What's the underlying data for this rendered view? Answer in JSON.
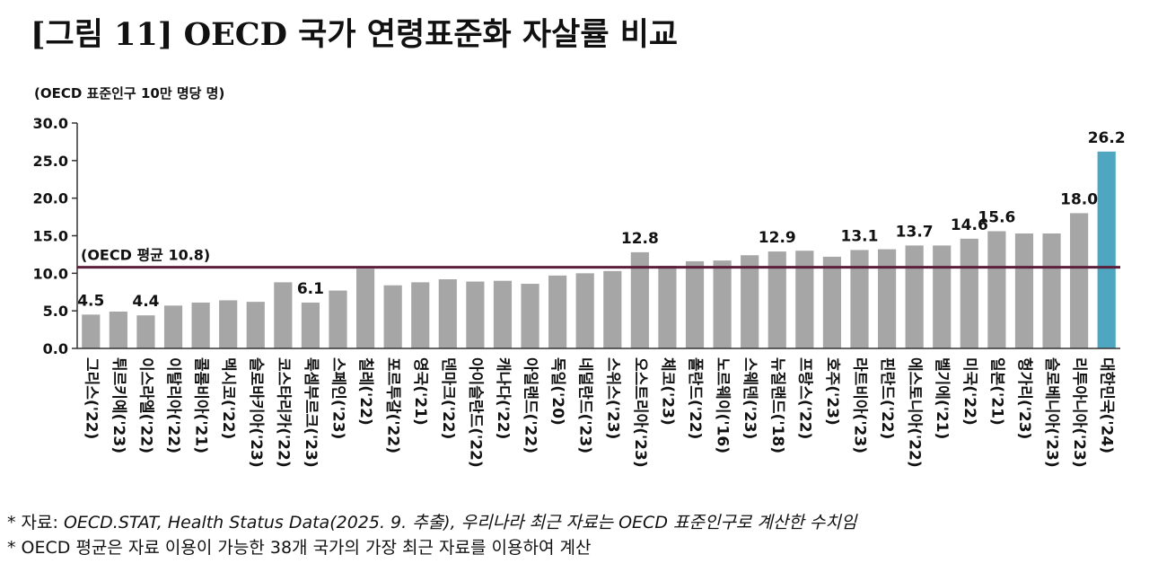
{
  "title": "[그림 11] OECD 국가 연령표준화 자살률 비교",
  "unit_label": "(OECD 표준인구 10만 명당 명)",
  "avg_label": "(OECD 평균 10.8)",
  "notes": {
    "bullet": "*",
    "source_prefix": "자료: ",
    "source_text": "OECD.STAT, Health Status Data(2025. 9. 추출), 우리나라 최근 자료는 OECD 표준인구로 계산한 수치임",
    "average_note": "OECD 평균은 자료 이용이 가능한 38개 국가의 가장 최근 자료를 이용하여 계산"
  },
  "colors": {
    "bar": "#a6a6a6",
    "highlight": "#4ea6c0",
    "avg_line": "#5b1f3c",
    "axis": "#333333"
  },
  "chart_data": {
    "type": "bar",
    "ylabel": "(OECD 표준인구 10만 명당 명)",
    "ylim": [
      0,
      30
    ],
    "yticks": [
      "0.0",
      "5.0",
      "10.0",
      "15.0",
      "20.0",
      "25.0",
      "30.0"
    ],
    "average": 10.8,
    "highlight_index": 37,
    "categories": [
      "그리스('22)",
      "튀르키예('23)",
      "이스라엘('22)",
      "이탈리아('22)",
      "콜롬비아('21)",
      "멕시코('22)",
      "슬로바키아('23)",
      "코스타리카('22)",
      "룩셈부르크('23)",
      "스페인('23)",
      "칠레('22)",
      "포르투갈('22)",
      "영국('21)",
      "덴마크('22)",
      "아이슬란드('22)",
      "캐나다('22)",
      "아일랜드('22)",
      "독일('20)",
      "네덜란드('23)",
      "스위스('23)",
      "오스트리아('23)",
      "체코('23)",
      "폴란드('22)",
      "노르웨이('16)",
      "스웨덴('23)",
      "뉴질랜드('18)",
      "프랑스('22)",
      "호주('23)",
      "라트비아('23)",
      "핀란드('22)",
      "에스토니아('22)",
      "벨기에('21)",
      "미국('22)",
      "일본('21)",
      "헝가리('23)",
      "슬로베니아('23)",
      "리투아니아('23)",
      "대한민국('24)"
    ],
    "values": [
      4.5,
      4.9,
      4.4,
      5.7,
      6.1,
      6.4,
      6.2,
      8.8,
      6.1,
      7.7,
      10.6,
      8.4,
      8.8,
      9.2,
      8.9,
      9.0,
      8.6,
      9.7,
      10.0,
      10.3,
      12.8,
      11.0,
      11.6,
      11.7,
      12.4,
      12.9,
      13.0,
      12.2,
      13.1,
      13.2,
      13.7,
      13.7,
      14.6,
      15.6,
      15.3,
      15.3,
      18.0,
      26.2
    ],
    "data_labels": [
      {
        "index": 0,
        "text": "4.5"
      },
      {
        "index": 2,
        "text": "4.4"
      },
      {
        "index": 8,
        "text": "6.1"
      },
      {
        "index": 20,
        "text": "12.8"
      },
      {
        "index": 25,
        "text": "12.9"
      },
      {
        "index": 28,
        "text": "13.1"
      },
      {
        "index": 30,
        "text": "13.7"
      },
      {
        "index": 32,
        "text": "14.6"
      },
      {
        "index": 33,
        "text": "15.6"
      },
      {
        "index": 36,
        "text": "18.0"
      },
      {
        "index": 37,
        "text": "26.2"
      }
    ],
    "grid": false,
    "legend": "none"
  }
}
